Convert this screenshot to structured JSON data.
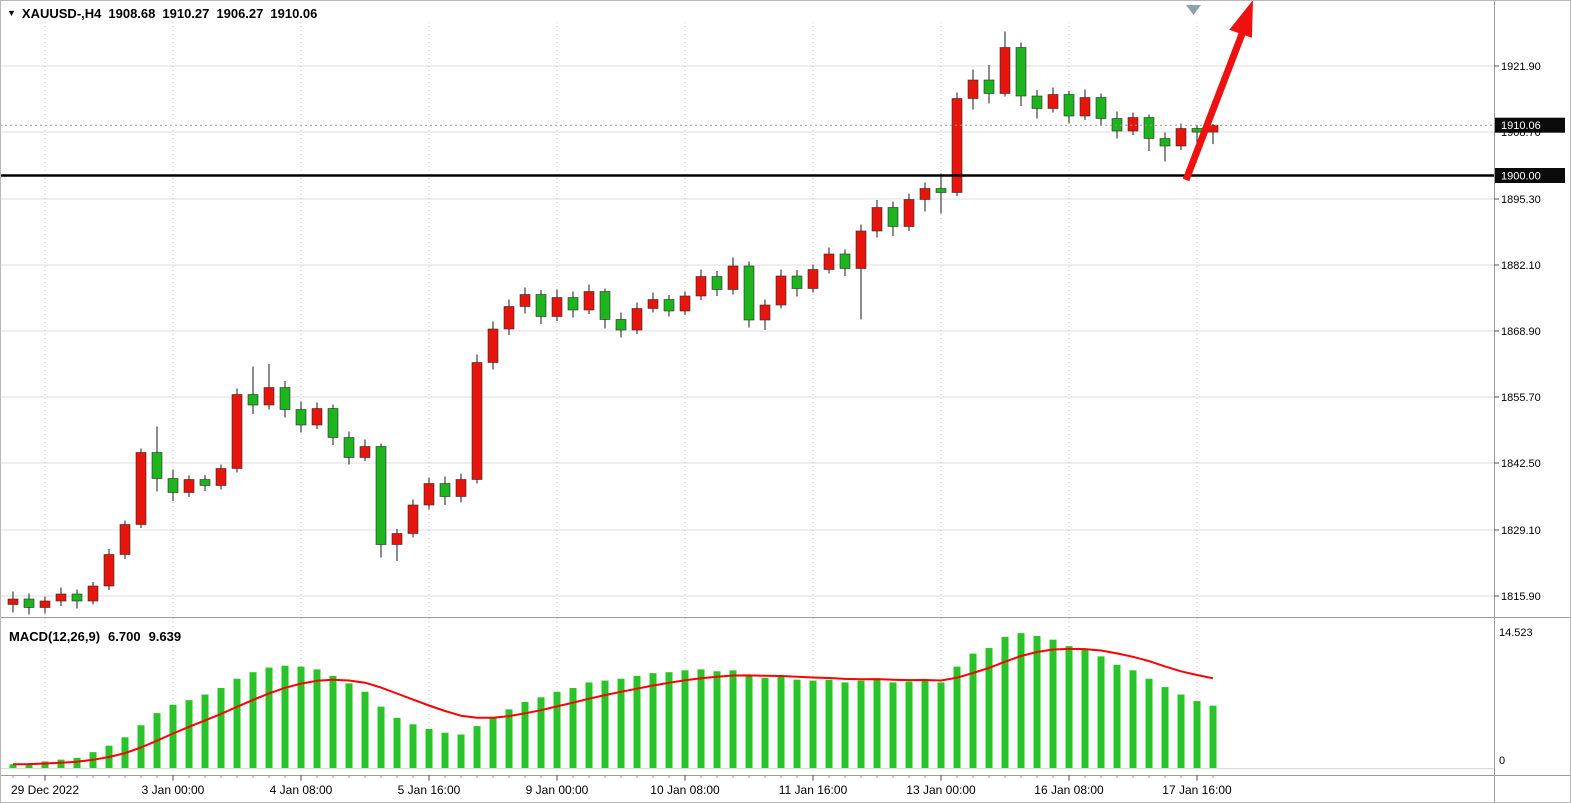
{
  "header": {
    "symbol_period": "XAUUSD-,H4",
    "open": "1908.68",
    "high": "1910.27",
    "low": "1906.27",
    "close": "1910.06"
  },
  "colors": {
    "bull_candle": "#e8150c",
    "bear_candle": "#1db51d",
    "wick": "#1a1a1a",
    "grid_h": "#dedede",
    "grid_v": "#c8c8c8",
    "separator": "#9a9a9a",
    "macd_histogram": "#28c428",
    "macd_signal": "#ff0000",
    "annotation_arrow": "#ef1010",
    "level_line": "#000000",
    "badge_bg": "#0a0a0a",
    "badge_text": "#ffffff",
    "axis_text": "#000000",
    "shift_marker": "#8fa2aa"
  },
  "price_axis": {
    "labels": [
      "1921.90",
      "1908.70",
      "1895.30",
      "1882.10",
      "1868.90",
      "1855.70",
      "1842.50",
      "1829.10",
      "1815.90"
    ],
    "current_price_label": "1910.06",
    "level_price_label": "1900.00"
  },
  "time_axis": {
    "labels": [
      "29 Dec 2022",
      "3 Jan 00:00",
      "4 Jan 08:00",
      "5 Jan 16:00",
      "9 Jan 00:00",
      "10 Jan 08:00",
      "11 Jan 16:00",
      "13 Jan 00:00",
      "16 Jan 08:00",
      "17 Jan 16:00"
    ]
  },
  "macd_panel": {
    "label": "MACD(12,26,9)",
    "main_value": "6.700",
    "signal_value": "9.639",
    "scale_max": "14.523",
    "scale_min": "0"
  },
  "chart_data": {
    "type": "candlestick+macd",
    "symbol": "XAUUSD-",
    "timeframe": "H4",
    "title": "XAUUSD-,H4 1908.68 1910.27 1906.27 1910.06",
    "up_color_meaning": "red body = bullish close, green body = bearish close",
    "grid_prices": [
      1921.9,
      1908.7,
      1895.3,
      1882.1,
      1868.9,
      1855.7,
      1842.5,
      1829.1,
      1815.9
    ],
    "level_line_price": 1900.0,
    "current_price": 1910.06,
    "time_tick_indices": [
      2,
      10,
      18,
      26,
      34,
      42,
      50,
      58,
      66,
      74
    ],
    "time_tick_labels": [
      "29 Dec 2022",
      "3 Jan 00:00",
      "4 Jan 08:00",
      "5 Jan 16:00",
      "9 Jan 00:00",
      "10 Jan 08:00",
      "11 Jan 16:00",
      "13 Jan 00:00",
      "16 Jan 08:00",
      "17 Jan 16:00"
    ],
    "candles_ohlc": [
      [
        1814.2,
        1816.8,
        1812.6,
        1815.3
      ],
      [
        1815.3,
        1816.4,
        1812.2,
        1813.6
      ],
      [
        1813.6,
        1815.8,
        1812.4,
        1814.9
      ],
      [
        1814.9,
        1817.6,
        1813.9,
        1816.3
      ],
      [
        1816.3,
        1817.2,
        1813.4,
        1814.9
      ],
      [
        1814.9,
        1818.7,
        1814.2,
        1817.9
      ],
      [
        1817.9,
        1825.3,
        1817.1,
        1824.2
      ],
      [
        1824.2,
        1831.0,
        1823.3,
        1830.2
      ],
      [
        1830.2,
        1845.4,
        1829.5,
        1844.6
      ],
      [
        1844.6,
        1849.8,
        1836.8,
        1839.4
      ],
      [
        1839.4,
        1841.2,
        1834.9,
        1836.6
      ],
      [
        1836.6,
        1840.0,
        1835.7,
        1839.2
      ],
      [
        1839.2,
        1840.1,
        1836.9,
        1838.0
      ],
      [
        1838.0,
        1842.2,
        1837.2,
        1841.4
      ],
      [
        1841.4,
        1857.4,
        1840.6,
        1856.2
      ],
      [
        1856.2,
        1861.8,
        1852.3,
        1854.1
      ],
      [
        1854.1,
        1862.3,
        1853.2,
        1857.6
      ],
      [
        1857.6,
        1858.9,
        1851.6,
        1853.2
      ],
      [
        1853.2,
        1854.8,
        1848.6,
        1850.1
      ],
      [
        1850.1,
        1854.6,
        1849.3,
        1853.4
      ],
      [
        1853.4,
        1854.2,
        1846.1,
        1847.6
      ],
      [
        1847.6,
        1848.8,
        1842.2,
        1843.6
      ],
      [
        1843.6,
        1847.2,
        1842.9,
        1845.8
      ],
      [
        1845.8,
        1846.4,
        1823.6,
        1826.2
      ],
      [
        1826.2,
        1829.3,
        1822.9,
        1828.4
      ],
      [
        1828.4,
        1835.2,
        1827.6,
        1834.1
      ],
      [
        1834.1,
        1839.6,
        1833.2,
        1838.4
      ],
      [
        1838.4,
        1839.8,
        1834.1,
        1835.8
      ],
      [
        1835.8,
        1840.4,
        1834.6,
        1839.2
      ],
      [
        1839.2,
        1864.2,
        1838.4,
        1862.6
      ],
      [
        1862.6,
        1870.8,
        1861.2,
        1869.3
      ],
      [
        1869.3,
        1875.2,
        1868.1,
        1873.8
      ],
      [
        1873.8,
        1877.6,
        1872.4,
        1876.2
      ],
      [
        1876.2,
        1877.1,
        1870.3,
        1871.8
      ],
      [
        1871.8,
        1877.2,
        1870.9,
        1875.6
      ],
      [
        1875.6,
        1876.8,
        1871.6,
        1873.1
      ],
      [
        1873.1,
        1878.2,
        1872.3,
        1876.8
      ],
      [
        1876.8,
        1877.4,
        1869.4,
        1871.2
      ],
      [
        1871.2,
        1872.6,
        1867.6,
        1869.1
      ],
      [
        1869.1,
        1874.6,
        1868.3,
        1873.4
      ],
      [
        1873.4,
        1876.6,
        1872.6,
        1875.2
      ],
      [
        1875.2,
        1876.1,
        1871.8,
        1872.9
      ],
      [
        1872.9,
        1876.8,
        1872.1,
        1875.9
      ],
      [
        1875.9,
        1881.2,
        1875.1,
        1879.8
      ],
      [
        1879.8,
        1880.9,
        1875.9,
        1877.2
      ],
      [
        1877.2,
        1883.6,
        1876.2,
        1881.9
      ],
      [
        1881.9,
        1882.8,
        1869.6,
        1871.1
      ],
      [
        1871.1,
        1875.2,
        1869.1,
        1874.1
      ],
      [
        1874.1,
        1881.2,
        1873.4,
        1879.9
      ],
      [
        1879.9,
        1881.1,
        1875.8,
        1877.4
      ],
      [
        1877.4,
        1882.2,
        1876.6,
        1881.2
      ],
      [
        1881.2,
        1885.6,
        1880.4,
        1884.3
      ],
      [
        1884.3,
        1885.2,
        1879.9,
        1881.4
      ],
      [
        1881.4,
        1890.2,
        1871.2,
        1888.9
      ],
      [
        1888.9,
        1895.1,
        1887.6,
        1893.6
      ],
      [
        1893.6,
        1894.8,
        1887.9,
        1889.8
      ],
      [
        1889.8,
        1896.4,
        1888.9,
        1895.2
      ],
      [
        1895.2,
        1898.6,
        1892.8,
        1897.4
      ],
      [
        1897.4,
        1900.4,
        1892.4,
        1896.6
      ],
      [
        1896.6,
        1916.6,
        1895.9,
        1915.4
      ],
      [
        1915.4,
        1921.2,
        1913.2,
        1919.1
      ],
      [
        1919.1,
        1922.1,
        1914.4,
        1916.4
      ],
      [
        1916.4,
        1928.8,
        1915.8,
        1925.6
      ],
      [
        1925.6,
        1926.6,
        1913.9,
        1915.9
      ],
      [
        1915.9,
        1917.1,
        1911.4,
        1913.4
      ],
      [
        1913.4,
        1917.6,
        1912.6,
        1916.2
      ],
      [
        1916.2,
        1916.9,
        1910.4,
        1911.9
      ],
      [
        1911.9,
        1917.2,
        1911.1,
        1915.6
      ],
      [
        1915.6,
        1916.4,
        1909.9,
        1911.4
      ],
      [
        1911.4,
        1912.8,
        1907.4,
        1908.9
      ],
      [
        1908.9,
        1912.6,
        1908.1,
        1911.6
      ],
      [
        1911.6,
        1912.2,
        1904.9,
        1907.4
      ],
      [
        1907.4,
        1908.6,
        1902.8,
        1905.9
      ],
      [
        1905.9,
        1910.4,
        1905.1,
        1909.4
      ],
      [
        1909.4,
        1910.1,
        1906.4,
        1908.68
      ],
      [
        1908.68,
        1910.27,
        1906.27,
        1910.06
      ]
    ],
    "macd": {
      "params": [
        12,
        26,
        9
      ],
      "scale_max": 14.523,
      "scale_min": 0,
      "current_main": 6.7,
      "current_signal": 9.639,
      "histogram": [
        0.4,
        0.5,
        0.7,
        0.9,
        1.1,
        1.7,
        2.4,
        3.3,
        4.6,
        5.9,
        6.8,
        7.3,
        7.9,
        8.6,
        9.6,
        10.3,
        10.8,
        11.0,
        10.9,
        10.6,
        9.9,
        9.1,
        8.2,
        6.6,
        5.4,
        4.7,
        4.2,
        3.8,
        3.6,
        4.5,
        5.4,
        6.3,
        7.1,
        7.6,
        8.2,
        8.6,
        9.2,
        9.4,
        9.6,
        9.9,
        10.2,
        10.3,
        10.5,
        10.6,
        10.4,
        10.5,
        10.0,
        9.7,
        9.8,
        9.5,
        9.4,
        9.5,
        9.2,
        9.4,
        9.6,
        9.2,
        9.3,
        9.5,
        9.2,
        10.9,
        12.3,
        12.9,
        14.1,
        14.5,
        14.2,
        13.8,
        13.1,
        12.7,
        12.0,
        11.1,
        10.5,
        9.6,
        8.7,
        7.9,
        7.2,
        6.7
      ],
      "signal": [
        0.4,
        0.42,
        0.48,
        0.56,
        0.67,
        0.88,
        1.18,
        1.6,
        2.2,
        2.94,
        3.71,
        4.43,
        5.12,
        5.82,
        6.58,
        7.32,
        8.02,
        8.62,
        9.08,
        9.38,
        9.48,
        9.41,
        9.17,
        8.66,
        8.01,
        7.35,
        6.72,
        6.13,
        5.62,
        5.4,
        5.4,
        5.58,
        5.88,
        6.22,
        6.62,
        7.02,
        7.45,
        7.84,
        8.19,
        8.53,
        8.87,
        9.16,
        9.43,
        9.66,
        9.81,
        9.95,
        9.96,
        9.91,
        9.89,
        9.81,
        9.73,
        9.68,
        9.58,
        9.55,
        9.56,
        9.49,
        9.45,
        9.46,
        9.41,
        9.71,
        10.22,
        10.76,
        11.43,
        12.04,
        12.47,
        12.74,
        12.81,
        12.79,
        12.63,
        12.32,
        11.96,
        11.49,
        10.93,
        10.4,
        10.0,
        9.64
      ]
    }
  }
}
